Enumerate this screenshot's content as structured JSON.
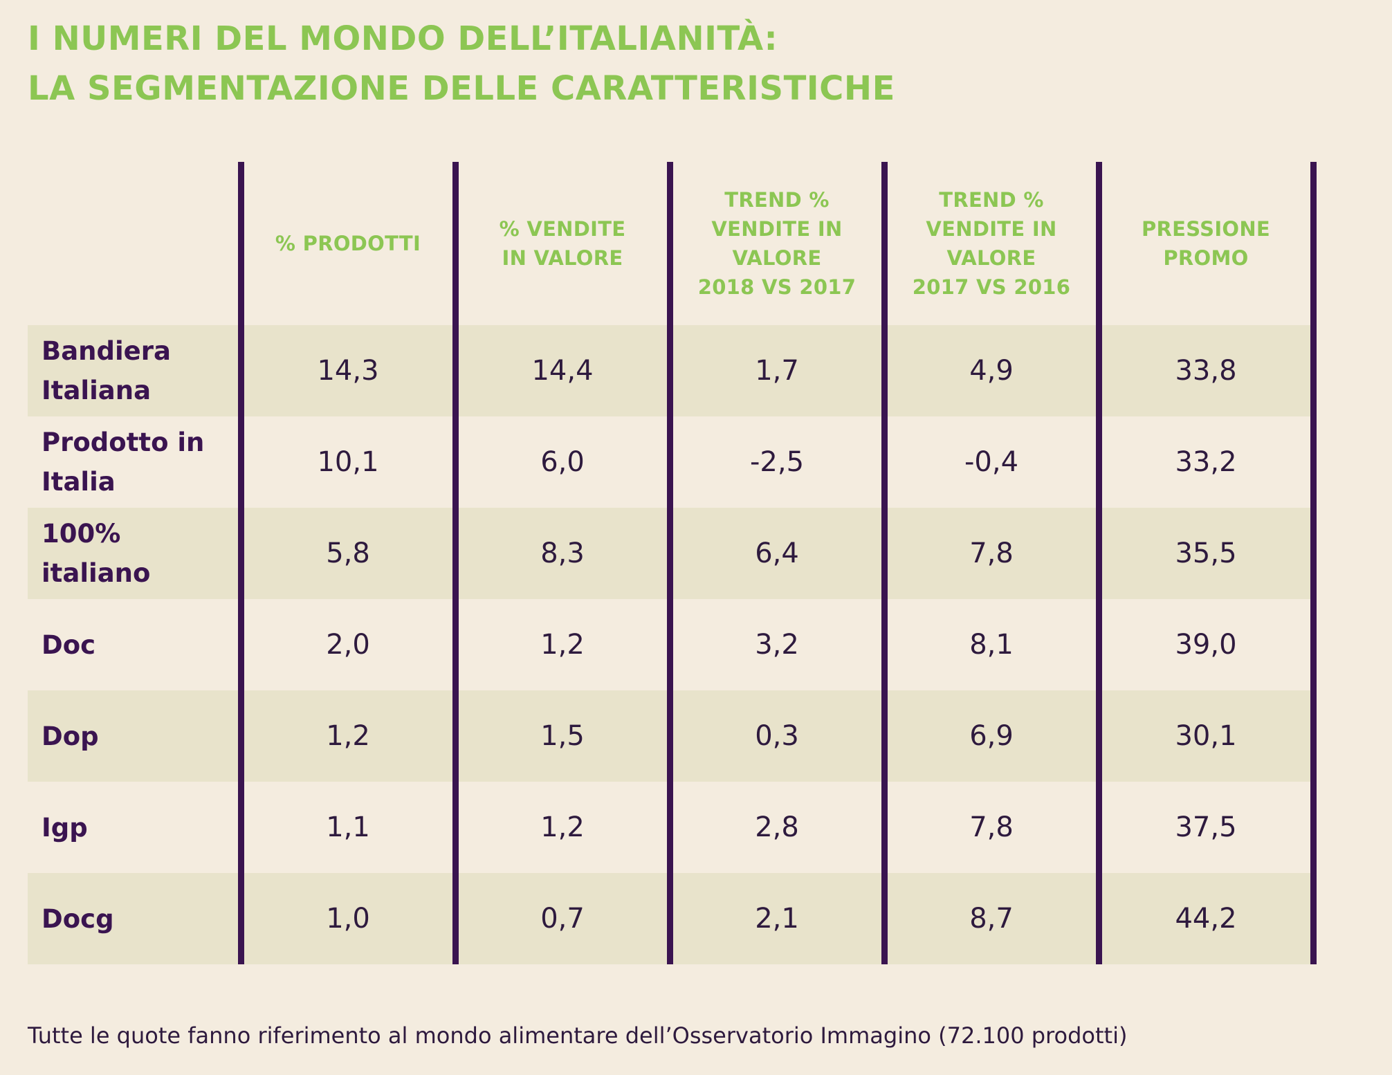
{
  "title": {
    "line1": "I NUMERI DEL MONDO DELL’ITALIANITÀ:",
    "line2": "LA SEGMENTAZIONE DELLE CARATTERISTICHE"
  },
  "chart_data": {
    "type": "table",
    "title": "I NUMERI DEL MONDO DELL’ITALIANITÀ: LA SEGMENTAZIONE DELLE CARATTERISTICHE",
    "columns": [
      "% PRODOTTI",
      "% VENDITE\nIN VALORE",
      "TREND %\nVENDITE IN\nVALORE\n2018 VS 2017",
      "TREND %\nVENDITE IN\nVALORE\n2017 VS 2016",
      "PRESSIONE\nPROMO"
    ],
    "rows": [
      {
        "label": "Bandiera\nItaliana",
        "values": [
          "14,3",
          "14,4",
          "1,7",
          "4,9",
          "33,8"
        ]
      },
      {
        "label": "Prodotto in\nItalia",
        "values": [
          "10,1",
          "6,0",
          "-2,5",
          "-0,4",
          "33,2"
        ]
      },
      {
        "label": "100%\nitaliano",
        "values": [
          "5,8",
          "8,3",
          "6,4",
          "7,8",
          "35,5"
        ]
      },
      {
        "label": "Doc",
        "values": [
          "2,0",
          "1,2",
          "3,2",
          "8,1",
          "39,0"
        ]
      },
      {
        "label": "Dop",
        "values": [
          "1,2",
          "1,5",
          "0,3",
          "6,9",
          "30,1"
        ]
      },
      {
        "label": "Igp",
        "values": [
          "1,1",
          "1,2",
          "2,8",
          "7,8",
          "37,5"
        ]
      },
      {
        "label": "Docg",
        "values": [
          "1,0",
          "0,7",
          "2,1",
          "8,7",
          "44,2"
        ]
      }
    ]
  },
  "colors": {
    "background": "#f4ecdf",
    "accent_green": "#8cc653",
    "purple": "#3a1450",
    "stripe": "#e8e3cb"
  },
  "footnote": "Tutte le quote fanno riferimento al mondo alimentare dell’Osservatorio Immagino (72.100 prodotti)"
}
